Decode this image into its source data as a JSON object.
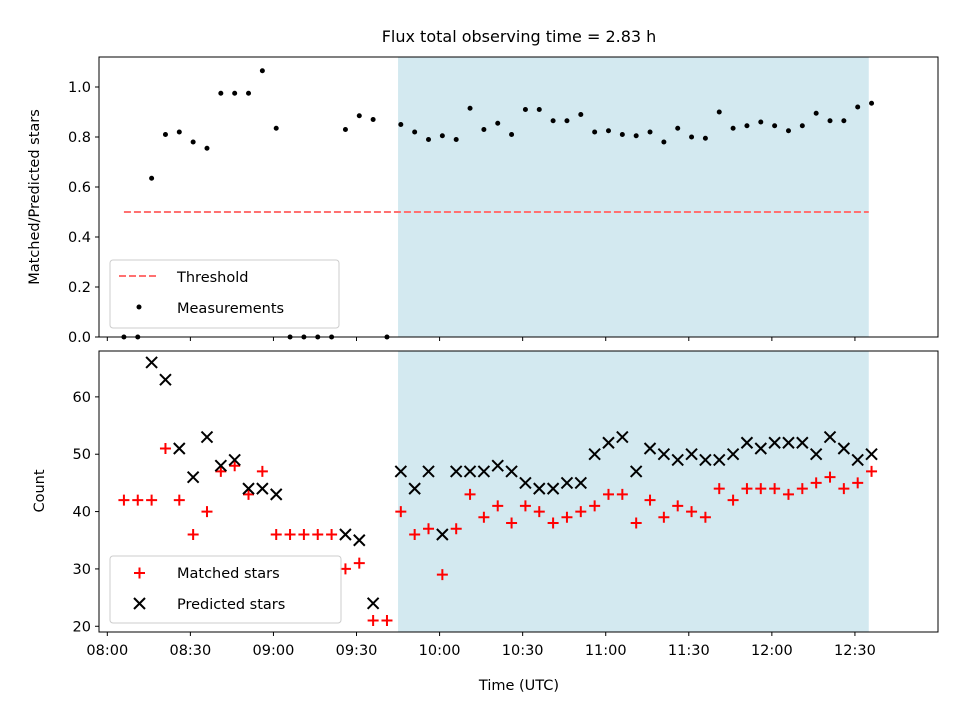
{
  "chart_data": [
    {
      "type": "scatter",
      "title": "Flux total observing time = 2.83 h",
      "xlabel": "",
      "ylabel": "Matched/Predicted stars",
      "xlim": [
        "07:57",
        "13:00"
      ],
      "ylim": [
        0,
        1.12
      ],
      "yticks": [
        0.0,
        0.2,
        0.4,
        0.6,
        0.8,
        1.0
      ],
      "ytick_labels": [
        "0.0",
        "0.2",
        "0.4",
        "0.6",
        "0.8",
        "1.0"
      ],
      "highlight_span": {
        "from": "09:45",
        "to": "12:35",
        "color": "#d3e9f0"
      },
      "legend_position": "lower-left",
      "threshold": {
        "name": "Threshold",
        "value": 0.5,
        "from": "08:06",
        "to": "12:35",
        "color": "#ff7070",
        "style": "dashed"
      },
      "series": [
        {
          "name": "Measurements",
          "color": "#000000",
          "marker": "dot",
          "points": [
            [
              "08:06",
              0.0
            ],
            [
              "08:11",
              0.0
            ],
            [
              "08:16",
              0.635
            ],
            [
              "08:21",
              0.81
            ],
            [
              "08:26",
              0.82
            ],
            [
              "08:31",
              0.78
            ],
            [
              "08:36",
              0.755
            ],
            [
              "08:41",
              0.975
            ],
            [
              "08:46",
              0.975
            ],
            [
              "08:51",
              0.975
            ],
            [
              "08:56",
              1.065
            ],
            [
              "09:01",
              0.835
            ],
            [
              "09:06",
              0.0
            ],
            [
              "09:11",
              0.0
            ],
            [
              "09:16",
              0.0
            ],
            [
              "09:21",
              0.0
            ],
            [
              "09:26",
              0.83
            ],
            [
              "09:31",
              0.885
            ],
            [
              "09:36",
              0.87
            ],
            [
              "09:41",
              0.0
            ],
            [
              "09:46",
              0.85
            ],
            [
              "09:51",
              0.82
            ],
            [
              "09:56",
              0.79
            ],
            [
              "10:01",
              0.805
            ],
            [
              "10:06",
              0.79
            ],
            [
              "10:11",
              0.915
            ],
            [
              "10:16",
              0.83
            ],
            [
              "10:21",
              0.855
            ],
            [
              "10:26",
              0.81
            ],
            [
              "10:31",
              0.91
            ],
            [
              "10:36",
              0.91
            ],
            [
              "10:41",
              0.865
            ],
            [
              "10:46",
              0.865
            ],
            [
              "10:51",
              0.89
            ],
            [
              "10:56",
              0.82
            ],
            [
              "11:01",
              0.825
            ],
            [
              "11:06",
              0.81
            ],
            [
              "11:11",
              0.805
            ],
            [
              "11:16",
              0.82
            ],
            [
              "11:21",
              0.78
            ],
            [
              "11:26",
              0.835
            ],
            [
              "11:31",
              0.8
            ],
            [
              "11:36",
              0.795
            ],
            [
              "11:41",
              0.9
            ],
            [
              "11:46",
              0.835
            ],
            [
              "11:51",
              0.845
            ],
            [
              "11:56",
              0.86
            ],
            [
              "12:01",
              0.845
            ],
            [
              "12:06",
              0.825
            ],
            [
              "12:11",
              0.845
            ],
            [
              "12:16",
              0.895
            ],
            [
              "12:21",
              0.865
            ],
            [
              "12:26",
              0.865
            ],
            [
              "12:31",
              0.92
            ],
            [
              "12:36",
              0.935
            ]
          ]
        }
      ]
    },
    {
      "type": "scatter",
      "title": "",
      "xlabel": "Time (UTC)",
      "ylabel": "Count",
      "xlim": [
        "07:57",
        "13:00"
      ],
      "ylim": [
        19,
        68
      ],
      "yticks": [
        20,
        30,
        40,
        50,
        60
      ],
      "ytick_labels": [
        "20",
        "30",
        "40",
        "50",
        "60"
      ],
      "xticks": [
        "08:00",
        "08:30",
        "09:00",
        "09:30",
        "10:00",
        "10:30",
        "11:00",
        "11:30",
        "12:00",
        "12:30"
      ],
      "xtick_labels": [
        "08:00",
        "08:30",
        "09:00",
        "09:30",
        "10:00",
        "10:30",
        "11:00",
        "11:30",
        "12:00",
        "12:30"
      ],
      "highlight_span": {
        "from": "09:45",
        "to": "12:35",
        "color": "#d3e9f0"
      },
      "legend_position": "lower-left",
      "series": [
        {
          "name": "Matched stars",
          "color": "#ff0000",
          "marker": "plus",
          "points": [
            [
              "08:06",
              42
            ],
            [
              "08:11",
              42
            ],
            [
              "08:16",
              42
            ],
            [
              "08:21",
              51
            ],
            [
              "08:26",
              42
            ],
            [
              "08:31",
              36
            ],
            [
              "08:36",
              40
            ],
            [
              "08:41",
              47
            ],
            [
              "08:46",
              48
            ],
            [
              "08:51",
              43
            ],
            [
              "08:56",
              47
            ],
            [
              "09:01",
              36
            ],
            [
              "09:06",
              36
            ],
            [
              "09:11",
              36
            ],
            [
              "09:16",
              36
            ],
            [
              "09:21",
              36
            ],
            [
              "09:26",
              30
            ],
            [
              "09:31",
              31
            ],
            [
              "09:36",
              21
            ],
            [
              "09:41",
              21
            ],
            [
              "09:46",
              40
            ],
            [
              "09:51",
              36
            ],
            [
              "09:56",
              37
            ],
            [
              "10:01",
              29
            ],
            [
              "10:06",
              37
            ],
            [
              "10:11",
              43
            ],
            [
              "10:16",
              39
            ],
            [
              "10:21",
              41
            ],
            [
              "10:26",
              38
            ],
            [
              "10:31",
              41
            ],
            [
              "10:36",
              40
            ],
            [
              "10:41",
              38
            ],
            [
              "10:46",
              39
            ],
            [
              "10:51",
              40
            ],
            [
              "10:56",
              41
            ],
            [
              "11:01",
              43
            ],
            [
              "11:06",
              43
            ],
            [
              "11:11",
              38
            ],
            [
              "11:16",
              42
            ],
            [
              "11:21",
              39
            ],
            [
              "11:26",
              41
            ],
            [
              "11:31",
              40
            ],
            [
              "11:36",
              39
            ],
            [
              "11:41",
              44
            ],
            [
              "11:46",
              42
            ],
            [
              "11:51",
              44
            ],
            [
              "11:56",
              44
            ],
            [
              "12:01",
              44
            ],
            [
              "12:06",
              43
            ],
            [
              "12:11",
              44
            ],
            [
              "12:16",
              45
            ],
            [
              "12:21",
              46
            ],
            [
              "12:26",
              44
            ],
            [
              "12:31",
              45
            ],
            [
              "12:36",
              47
            ]
          ]
        },
        {
          "name": "Predicted stars",
          "color": "#000000",
          "marker": "x",
          "points": [
            [
              "08:16",
              66
            ],
            [
              "08:21",
              63
            ],
            [
              "08:26",
              51
            ],
            [
              "08:31",
              46
            ],
            [
              "08:36",
              53
            ],
            [
              "08:41",
              48
            ],
            [
              "08:46",
              49
            ],
            [
              "08:51",
              44
            ],
            [
              "08:56",
              44
            ],
            [
              "09:01",
              43
            ],
            [
              "09:26",
              36
            ],
            [
              "09:31",
              35
            ],
            [
              "09:36",
              24
            ],
            [
              "09:46",
              47
            ],
            [
              "09:51",
              44
            ],
            [
              "09:56",
              47
            ],
            [
              "10:01",
              36
            ],
            [
              "10:06",
              47
            ],
            [
              "10:11",
              47
            ],
            [
              "10:16",
              47
            ],
            [
              "10:21",
              48
            ],
            [
              "10:26",
              47
            ],
            [
              "10:31",
              45
            ],
            [
              "10:36",
              44
            ],
            [
              "10:41",
              44
            ],
            [
              "10:46",
              45
            ],
            [
              "10:51",
              45
            ],
            [
              "10:56",
              50
            ],
            [
              "11:01",
              52
            ],
            [
              "11:06",
              53
            ],
            [
              "11:11",
              47
            ],
            [
              "11:16",
              51
            ],
            [
              "11:21",
              50
            ],
            [
              "11:26",
              49
            ],
            [
              "11:31",
              50
            ],
            [
              "11:36",
              49
            ],
            [
              "11:41",
              49
            ],
            [
              "11:46",
              50
            ],
            [
              "11:51",
              52
            ],
            [
              "11:56",
              51
            ],
            [
              "12:01",
              52
            ],
            [
              "12:06",
              52
            ],
            [
              "12:11",
              52
            ],
            [
              "12:16",
              50
            ],
            [
              "12:21",
              53
            ],
            [
              "12:26",
              51
            ],
            [
              "12:31",
              49
            ],
            [
              "12:36",
              50
            ]
          ]
        }
      ]
    }
  ]
}
